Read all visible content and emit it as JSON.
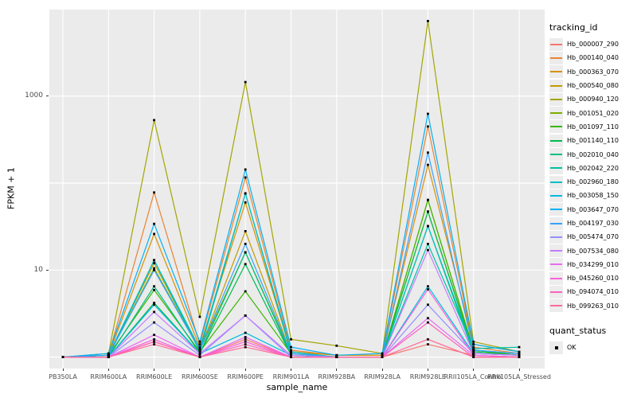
{
  "figure": {
    "ylabel": "FPKM + 1",
    "xlabel": "sample_name",
    "panel_bg": "#EBEBEB",
    "gridline_color": "#FFFFFF",
    "tick_label_color": "#4d4d4d",
    "legend_tracking_title": "tracking_id",
    "legend_quant_title": "quant_status",
    "legend_quant_label": "OK"
  },
  "chart_data": {
    "type": "line",
    "title": "",
    "xlabel": "sample_name",
    "ylabel": "FPKM + 1",
    "y_scale": "log10",
    "ylim_log10": [
      -0.132,
      4.004
    ],
    "y_ticks": [
      {
        "value": 1000,
        "label": "1000"
      },
      {
        "value": 10,
        "label": "10"
      }
    ],
    "y_gridlines": [
      1,
      10,
      100,
      1000,
      10000
    ],
    "grid": true,
    "legend_position": "right",
    "point_color": "#000000",
    "categories": [
      "PB350LA",
      "RRIM600LA",
      "RRIM600LE",
      "RRIM600SE",
      "RRIM600PE",
      "RRIM901LA",
      "RRIM928BA",
      "RRIM928LA",
      "RRIM928LE",
      "RRII105LA_Control",
      "RRII105LA_Stressed"
    ],
    "series": [
      {
        "name": "Hb_000007_290",
        "color": "#F8766D",
        "values": [
          1,
          1,
          1.5,
          1,
          1.6,
          1,
          1,
          1,
          1.4,
          1.05,
          1
        ]
      },
      {
        "name": "Hb_000140_040",
        "color": "#EA8331",
        "values": [
          1,
          1.05,
          78,
          1.4,
          116,
          1.2,
          1.05,
          1.05,
          447,
          1.3,
          1.1
        ]
      },
      {
        "name": "Hb_000363_070",
        "color": "#D89000",
        "values": [
          1,
          1.05,
          26,
          1.3,
          60,
          1.15,
          1.05,
          1.05,
          162,
          1.4,
          1.15
        ]
      },
      {
        "name": "Hb_000540_080",
        "color": "#C09B00",
        "values": [
          1,
          1.05,
          12,
          1.2,
          28,
          1.1,
          1,
          1,
          64,
          1.2,
          1.05
        ]
      },
      {
        "name": "Hb_000940_120",
        "color": "#A3A500",
        "values": [
          1,
          1.1,
          530,
          2.9,
          1450,
          1.6,
          1.35,
          1.1,
          7300,
          1.5,
          1.15
        ]
      },
      {
        "name": "Hb_001051_020",
        "color": "#7CAE00",
        "values": [
          1,
          1.05,
          10.5,
          1.2,
          16,
          1.1,
          1,
          1,
          47,
          1.2,
          1.05
        ]
      },
      {
        "name": "Hb_001097_110",
        "color": "#39B600",
        "values": [
          1,
          1.05,
          5.9,
          1.15,
          5.7,
          1.1,
          1,
          1,
          64,
          1.2,
          1.05
        ]
      },
      {
        "name": "Hb_001140_110",
        "color": "#00BB4E",
        "values": [
          1,
          1,
          4.2,
          1.1,
          11.7,
          1.05,
          1,
          1,
          47,
          1.15,
          1.05
        ]
      },
      {
        "name": "Hb_002010_040",
        "color": "#00BF7D",
        "values": [
          1,
          1,
          6.5,
          1.1,
          16,
          1.05,
          1,
          1,
          32,
          1.1,
          1.05
        ]
      },
      {
        "name": "Hb_002042_220",
        "color": "#00C1A3",
        "values": [
          1,
          1,
          13,
          1.15,
          76,
          1.1,
          1,
          1,
          20,
          1.25,
          1.3
        ]
      },
      {
        "name": "Hb_002960_180",
        "color": "#00BFC4",
        "values": [
          1,
          1.05,
          13,
          1.25,
          76,
          1.15,
          1,
          1,
          32,
          1.2,
          1.1
        ]
      },
      {
        "name": "Hb_003058_150",
        "color": "#00BAE0",
        "values": [
          1,
          1,
          4,
          1.1,
          1.9,
          1.05,
          1,
          1,
          6.5,
          1.1,
          1.05
        ]
      },
      {
        "name": "Hb_003647_070",
        "color": "#00B0F6",
        "values": [
          1,
          1.1,
          34,
          1.5,
          143,
          1.3,
          1.05,
          1.1,
          625,
          1.4,
          1.15
        ]
      },
      {
        "name": "Hb_004197_030",
        "color": "#35A2FF",
        "values": [
          1,
          1.05,
          10,
          1.2,
          20,
          1.1,
          1,
          1,
          224,
          1.2,
          1.1
        ]
      },
      {
        "name": "Hb_005474_070",
        "color": "#9590FF",
        "values": [
          1,
          1,
          2.5,
          1.05,
          3,
          1,
          1,
          1,
          4,
          1.1,
          1.05
        ]
      },
      {
        "name": "Hb_007534_080",
        "color": "#C77CFF",
        "values": [
          1,
          1,
          3.3,
          1.1,
          3,
          1.05,
          1,
          1,
          17,
          1.1,
          1.05
        ]
      },
      {
        "name": "Hb_034299_010",
        "color": "#E76BF3",
        "values": [
          1,
          1,
          1.8,
          1,
          1.7,
          1,
          1,
          1,
          2.8,
          1.05,
          1
        ]
      },
      {
        "name": "Hb_045260_010",
        "color": "#FA62DB",
        "values": [
          1,
          1,
          1.6,
          1,
          1.5,
          1,
          1,
          1,
          6,
          1.05,
          1
        ]
      },
      {
        "name": "Hb_094074_010",
        "color": "#FF62BC",
        "values": [
          1,
          1,
          1.5,
          1,
          1.4,
          1,
          1,
          1,
          2.5,
          1,
          1
        ]
      },
      {
        "name": "Hb_099263_010",
        "color": "#FF6A98",
        "values": [
          1,
          1,
          1.4,
          1,
          1.3,
          1,
          1,
          1,
          1.6,
          1,
          1
        ]
      }
    ],
    "quant_status": {
      "title": "quant_status",
      "items": [
        {
          "label": "OK",
          "shape": "square",
          "color": "#000000"
        }
      ]
    }
  }
}
